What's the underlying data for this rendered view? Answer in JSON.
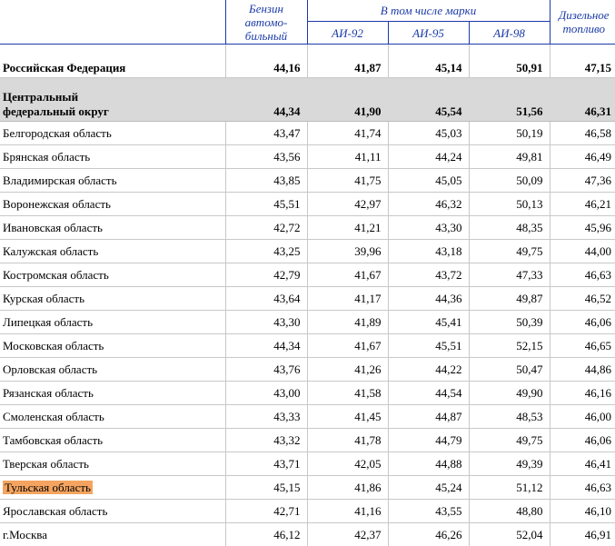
{
  "headers": {
    "gasoline": "Бензин\nавтомо-\nбильный",
    "brands_group": "В том числе марки",
    "ai92": "АИ-92",
    "ai95": "АИ-95",
    "ai98": "АИ-98",
    "diesel": "Дизельное\nтопливо"
  },
  "rows": [
    {
      "type": "rf",
      "name": "Российская Федерация",
      "values": [
        "44,16",
        "41,87",
        "45,14",
        "50,91",
        "47,15"
      ]
    },
    {
      "type": "cfo",
      "name": "Центральный\nфедеральный округ",
      "values": [
        "44,34",
        "41,90",
        "45,54",
        "51,56",
        "46,31"
      ]
    },
    {
      "type": "region",
      "name": "Белгородская область",
      "values": [
        "43,47",
        "41,74",
        "45,03",
        "50,19",
        "46,58"
      ]
    },
    {
      "type": "region",
      "name": "Брянская область",
      "values": [
        "43,56",
        "41,11",
        "44,24",
        "49,81",
        "46,49"
      ]
    },
    {
      "type": "region",
      "name": "Владимирская область",
      "values": [
        "43,85",
        "41,75",
        "45,05",
        "50,09",
        "47,36"
      ]
    },
    {
      "type": "region",
      "name": "Воронежская область",
      "values": [
        "45,51",
        "42,97",
        "46,32",
        "50,13",
        "46,21"
      ]
    },
    {
      "type": "region",
      "name": "Ивановская область",
      "values": [
        "42,72",
        "41,21",
        "43,30",
        "48,35",
        "45,96"
      ]
    },
    {
      "type": "region",
      "name": "Калужская область",
      "values": [
        "43,25",
        "39,96",
        "43,18",
        "49,75",
        "44,00"
      ]
    },
    {
      "type": "region",
      "name": "Костромская область",
      "values": [
        "42,79",
        "41,67",
        "43,72",
        "47,33",
        "46,63"
      ]
    },
    {
      "type": "region",
      "name": "Курская область",
      "values": [
        "43,64",
        "41,17",
        "44,36",
        "49,87",
        "46,52"
      ]
    },
    {
      "type": "region",
      "name": "Липецкая область",
      "values": [
        "43,30",
        "41,89",
        "45,41",
        "50,39",
        "46,06"
      ]
    },
    {
      "type": "region",
      "name": "Московская область",
      "values": [
        "44,34",
        "41,67",
        "45,51",
        "52,15",
        "46,65"
      ]
    },
    {
      "type": "region",
      "name": "Орловская область",
      "values": [
        "43,76",
        "41,26",
        "44,22",
        "50,47",
        "44,86"
      ]
    },
    {
      "type": "region",
      "name": "Рязанская область",
      "values": [
        "43,00",
        "41,58",
        "44,54",
        "49,90",
        "46,16"
      ]
    },
    {
      "type": "region",
      "name": "Смоленская область",
      "values": [
        "43,33",
        "41,45",
        "44,87",
        "48,53",
        "46,00"
      ]
    },
    {
      "type": "region",
      "name": "Тамбовская область",
      "values": [
        "43,32",
        "41,78",
        "44,79",
        "49,75",
        "46,06"
      ]
    },
    {
      "type": "region",
      "name": "Тверская область",
      "values": [
        "43,71",
        "42,05",
        "44,88",
        "49,39",
        "46,41"
      ]
    },
    {
      "type": "region",
      "name": "Тульская область",
      "highlight": true,
      "values": [
        "45,15",
        "41,86",
        "45,24",
        "51,12",
        "46,63"
      ]
    },
    {
      "type": "region",
      "name": "Ярославская область",
      "values": [
        "42,71",
        "41,16",
        "43,55",
        "48,80",
        "46,10"
      ]
    },
    {
      "type": "region",
      "name": "г.Москва",
      "values": [
        "46,12",
        "42,37",
        "46,26",
        "52,04",
        "46,91"
      ]
    }
  ],
  "colors": {
    "header_text": "#1a3aa8",
    "cfo_background": "#d9d9d9",
    "highlight": "#f4a460"
  }
}
